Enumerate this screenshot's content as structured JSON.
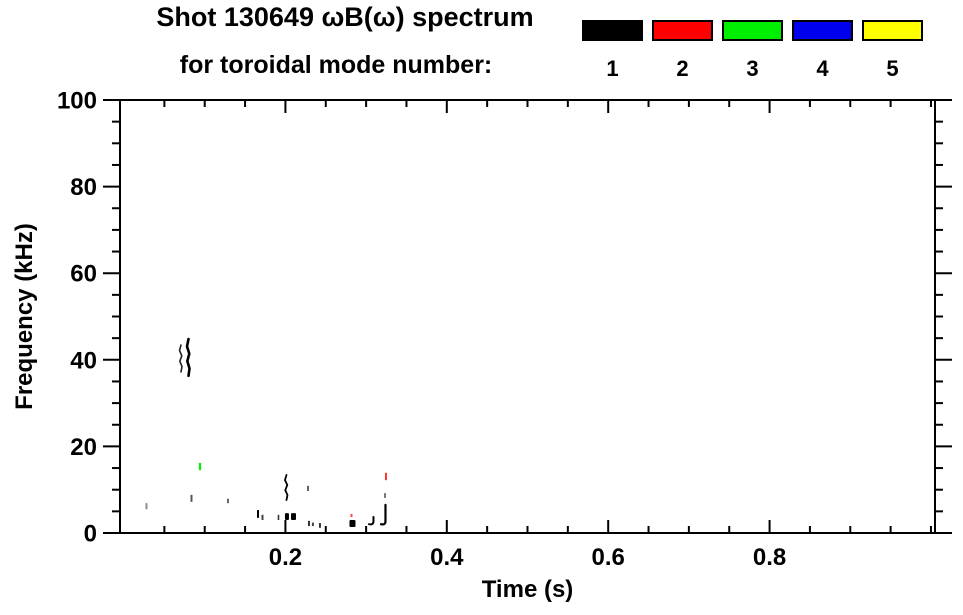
{
  "title": {
    "line1": "Shot 130649 ωB(ω) spectrum",
    "line2": "for toroidal mode number:"
  },
  "chart_data": {
    "type": "scatter",
    "title": "Shot 130649 ωB(ω) spectrum for toroidal mode number",
    "xlabel": "Time (s)",
    "ylabel": "Frequency (kHz)",
    "xlim": [
      -0.005,
      1.005
    ],
    "ylim": [
      0,
      100
    ],
    "x_major_ticks": [
      0.2,
      0.4,
      0.6,
      0.8
    ],
    "x_tick_labels": [
      "0.2",
      "0.4",
      "0.6",
      "0.8"
    ],
    "x_minor_step": 0.05,
    "y_major_ticks": [
      0,
      20,
      40,
      60,
      80,
      100
    ],
    "y_tick_labels": [
      "0",
      "20",
      "40",
      "60",
      "80",
      "100"
    ],
    "y_minor_step": 5,
    "grid": false,
    "legend_position": "top-right",
    "legend": [
      {
        "label": "1",
        "color": "#000000"
      },
      {
        "label": "2",
        "color": "#ff0000"
      },
      {
        "label": "3",
        "color": "#00ee00"
      },
      {
        "label": "4",
        "color": "#0000ee"
      },
      {
        "label": "5",
        "color": "#ffff00"
      }
    ],
    "marks": [
      {
        "n": 1,
        "shape": "squiggle",
        "t": 0.0706,
        "f0": 37.2,
        "f1": 43.4,
        "w": 1.6,
        "color": "#222222"
      },
      {
        "n": 1,
        "shape": "squiggle",
        "t": 0.0799,
        "f0": 36.3,
        "f1": 44.8,
        "w": 2.6,
        "color": "#000000"
      },
      {
        "n": 1,
        "shape": "tick",
        "t": 0.0278,
        "f0": 5.5,
        "f1": 6.9,
        "w": 2,
        "color": "#8a8a8a"
      },
      {
        "n": 1,
        "shape": "tick",
        "t": 0.0836,
        "f0": 7.2,
        "f1": 8.8,
        "w": 2,
        "color": "#555555"
      },
      {
        "n": 3,
        "shape": "tick",
        "t": 0.0941,
        "f0": 14.5,
        "f1": 16.2,
        "w": 2.2,
        "color": "#00ee00"
      },
      {
        "n": 1,
        "shape": "tick",
        "t": 0.1288,
        "f0": 6.9,
        "f1": 7.9,
        "w": 2,
        "color": "#666666"
      },
      {
        "n": 1,
        "shape": "tick",
        "t": 0.166,
        "f0": 3.5,
        "f1": 5.3,
        "w": 2,
        "color": "#000000"
      },
      {
        "n": 1,
        "shape": "dot",
        "t": 0.1716,
        "f0": 3.0,
        "f1": 4.2,
        "w": 2,
        "color": "#444444"
      },
      {
        "n": 1,
        "shape": "tick",
        "t": 0.1914,
        "f0": 3.0,
        "f1": 4.2,
        "w": 1.6,
        "color": "#333333"
      },
      {
        "n": 1,
        "shape": "squiggle",
        "t": 0.2013,
        "f0": 7.6,
        "f1": 13.4,
        "w": 1.8,
        "color": "#000000"
      },
      {
        "n": 1,
        "shape": "blob",
        "t": 0.2019,
        "f0": 3.0,
        "f1": 4.6,
        "w": 4,
        "color": "#000000"
      },
      {
        "n": 1,
        "shape": "blob",
        "t": 0.21,
        "f0": 3.0,
        "f1": 4.6,
        "w": 5,
        "color": "#000000"
      },
      {
        "n": 1,
        "shape": "tick",
        "t": 0.228,
        "f0": 9.7,
        "f1": 10.9,
        "w": 1.5,
        "color": "#333333"
      },
      {
        "n": 1,
        "shape": "dot",
        "t": 0.2292,
        "f0": 1.6,
        "f1": 2.8,
        "w": 2,
        "color": "#333333"
      },
      {
        "n": 1,
        "shape": "dot",
        "t": 0.2341,
        "f0": 1.6,
        "f1": 2.4,
        "w": 2,
        "color": "#444444"
      },
      {
        "n": 1,
        "shape": "dot",
        "t": 0.2428,
        "f0": 1.2,
        "f1": 2.3,
        "w": 2,
        "color": "#333333"
      },
      {
        "n": 2,
        "shape": "tick",
        "t": 0.2819,
        "f0": 3.7,
        "f1": 4.4,
        "w": 2,
        "color": "#ff4444"
      },
      {
        "n": 1,
        "shape": "blob",
        "t": 0.2831,
        "f0": 1.4,
        "f1": 3.0,
        "w": 6,
        "color": "#000000"
      },
      {
        "n": 1,
        "shape": "hook",
        "t": 0.3091,
        "f0": 1.8,
        "f1": 3.7,
        "w": 2,
        "color": "#000000"
      },
      {
        "n": 1,
        "shape": "dot",
        "t": 0.3234,
        "f0": 8.1,
        "f1": 9.2,
        "w": 2,
        "color": "#777777"
      },
      {
        "n": 2,
        "shape": "tick",
        "t": 0.3246,
        "f0": 12.2,
        "f1": 13.9,
        "w": 2,
        "color": "#ff3333"
      },
      {
        "n": 1,
        "shape": "hook",
        "t": 0.324,
        "f0": 1.8,
        "f1": 6.5,
        "w": 2.2,
        "color": "#000000"
      }
    ]
  }
}
